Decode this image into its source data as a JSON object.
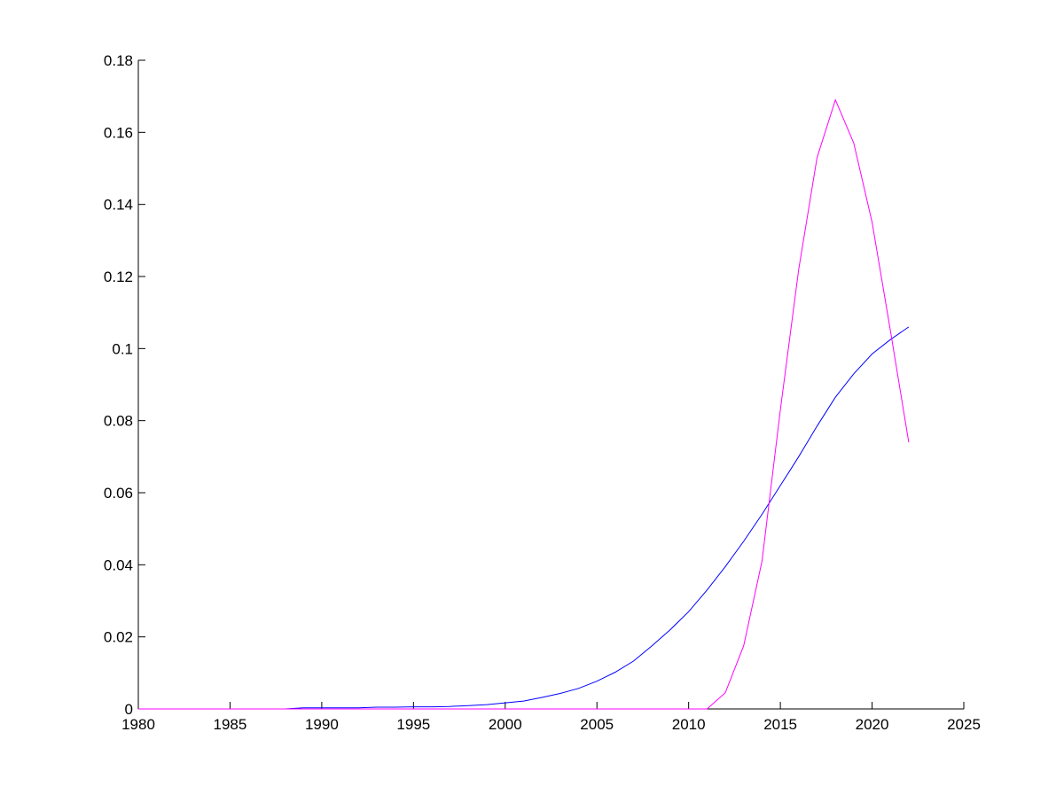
{
  "chart_data": {
    "type": "line",
    "title": "",
    "xlabel": "",
    "ylabel": "",
    "xlim": [
      1980,
      2025
    ],
    "ylim": [
      0,
      0.18
    ],
    "grid": false,
    "xticks": [
      "1980",
      "1985",
      "1990",
      "1995",
      "2000",
      "2005",
      "2010",
      "2015",
      "2020",
      "2025"
    ],
    "yticks": [
      "0",
      "0.02",
      "0.04",
      "0.06",
      "0.08",
      "0.1",
      "0.12",
      "0.14",
      "0.16",
      "0.18"
    ],
    "series": [
      {
        "color": "#0000ff",
        "x": [
          1980,
          1981,
          1982,
          1983,
          1984,
          1985,
          1986,
          1987,
          1988,
          1989,
          1990,
          1991,
          1992,
          1993,
          1994,
          1995,
          1996,
          1997,
          1998,
          1999,
          2000,
          2001,
          2002,
          2003,
          2004,
          2005,
          2006,
          2007,
          2008,
          2009,
          2010,
          2011,
          2012,
          2013,
          2014,
          2015,
          2016,
          2017,
          2018,
          2019,
          2020,
          2021,
          2022
        ],
        "y": [
          0,
          0,
          0,
          0,
          0,
          0,
          0,
          0,
          0,
          0.0003,
          0.0003,
          0.0003,
          0.0003,
          0.0005,
          0.0005,
          0.0006,
          0.0006,
          0.0007,
          0.0009,
          0.0012,
          0.0017,
          0.0022,
          0.0032,
          0.0043,
          0.0057,
          0.0077,
          0.0102,
          0.0133,
          0.0175,
          0.022,
          0.027,
          0.033,
          0.0395,
          0.0465,
          0.054,
          0.062,
          0.07,
          0.0785,
          0.0865,
          0.093,
          0.0985,
          0.1025,
          0.106
        ]
      },
      {
        "color": "#ff00ff",
        "x": [
          1980,
          1985,
          1990,
          1995,
          2000,
          2005,
          2010,
          2011,
          2012,
          2013,
          2014,
          2015,
          2016,
          2017,
          2018,
          2019,
          2020,
          2021,
          2022
        ],
        "y": [
          0,
          0,
          0,
          0,
          0,
          0,
          0,
          0,
          0.0045,
          0.0175,
          0.041,
          0.083,
          0.122,
          0.153,
          0.169,
          0.157,
          0.135,
          0.105,
          0.074
        ]
      }
    ]
  }
}
